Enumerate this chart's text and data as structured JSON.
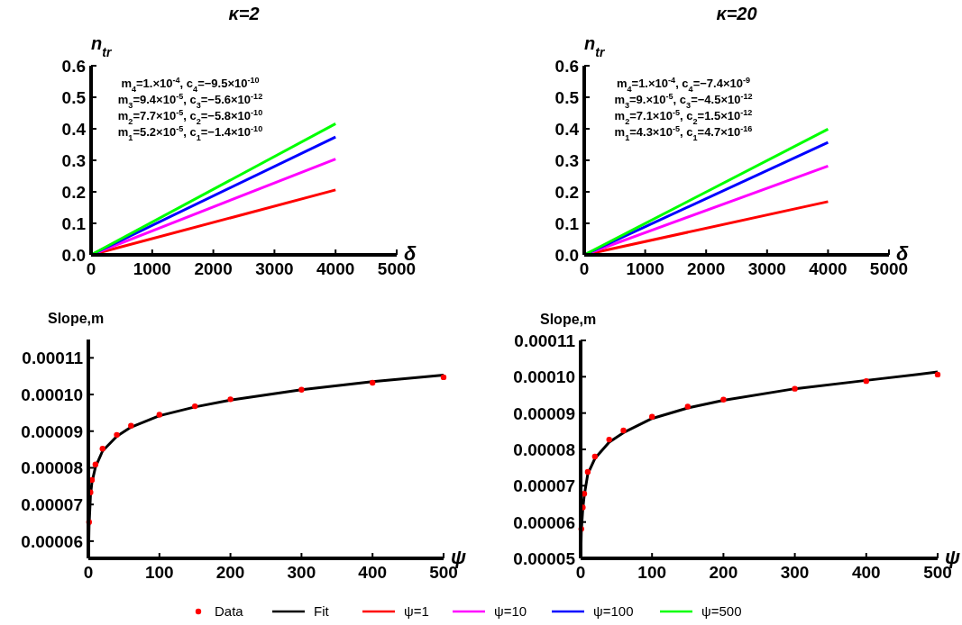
{
  "chart_data": [
    {
      "type": "line",
      "title": "κ=2",
      "xlabel": "δ",
      "ylabel": "n$_{tr}$",
      "xlim": [
        0,
        5000
      ],
      "xticks": [
        0,
        1000,
        2000,
        3000,
        4000,
        5000
      ],
      "ylim": [
        0,
        0.6
      ],
      "yticks": [
        {
          "value": 0,
          "label": "0.0"
        },
        {
          "value": 0.1,
          "label": "0.1"
        },
        {
          "value": 0.2,
          "label": "0.2"
        },
        {
          "value": 0.3,
          "label": "0.3"
        },
        {
          "value": 0.4,
          "label": "0.4"
        },
        {
          "value": 0.5,
          "label": "0.5"
        },
        {
          "value": 0.6,
          "label": "0.6"
        }
      ],
      "grid": false,
      "legend": "bottom",
      "annotations": [
        "m$_{4}$=1.×10$^{-4}$, c$_{4}$=−9.5×10$^{-10}$",
        "m$_{3}$=9.4×10$^{-5}$, c$_{3}$=−5.6×10$^{-12}$",
        "m$_{2}$=7.7×10$^{-5}$, c$_{2}$=−5.8×10$^{-10}$",
        "m$_{1}$=5.2×10$^{-5}$, c$_{1}$=−1.4×10$^{-10}$"
      ],
      "series": [
        {
          "name": "ψ=1",
          "color": "#ff0000",
          "x": [
            0,
            4000
          ],
          "values": [
            0,
            0.206
          ]
        },
        {
          "name": "ψ=10",
          "color": "#ff00ff",
          "x": [
            0,
            4000
          ],
          "values": [
            0,
            0.304
          ]
        },
        {
          "name": "ψ=100",
          "color": "#0000ff",
          "x": [
            0,
            4000
          ],
          "values": [
            0,
            0.374
          ]
        },
        {
          "name": "ψ=500",
          "color": "#00ff00",
          "x": [
            0,
            4000
          ],
          "values": [
            0,
            0.416
          ]
        }
      ]
    },
    {
      "type": "line",
      "title": "κ=20",
      "xlabel": "δ",
      "ylabel": "n$_{tr}$",
      "xlim": [
        0,
        5000
      ],
      "xticks": [
        0,
        1000,
        2000,
        3000,
        4000,
        5000
      ],
      "ylim": [
        0,
        0.6
      ],
      "yticks": [
        {
          "value": 0,
          "label": "0.0"
        },
        {
          "value": 0.1,
          "label": "0.1"
        },
        {
          "value": 0.2,
          "label": "0.2"
        },
        {
          "value": 0.3,
          "label": "0.3"
        },
        {
          "value": 0.4,
          "label": "0.4"
        },
        {
          "value": 0.5,
          "label": "0.5"
        },
        {
          "value": 0.6,
          "label": "0.6"
        }
      ],
      "grid": false,
      "annotations": [
        "m$_{4}$=1.×10$^{-4}$, c$_{4}$=−7.4×10$^{-9}$",
        "m$_{3}$=9.×10$^{-5}$, c$_{3}$=−4.5×10$^{-12}$",
        "m$_{2}$=7.1×10$^{-5}$, c$_{2}$=1.5×10$^{-12}$",
        "m$_{1}$=4.3×10$^{-5}$, c$_{1}$=4.7×10$^{-16}$"
      ],
      "series": [
        {
          "color": "#ff0000",
          "x": [
            0,
            4000
          ],
          "values": [
            0,
            0.169
          ]
        },
        {
          "color": "#ff00ff",
          "x": [
            0,
            4000
          ],
          "values": [
            0,
            0.282
          ]
        },
        {
          "color": "#0000ff",
          "x": [
            0,
            4000
          ],
          "values": [
            0,
            0.357
          ]
        },
        {
          "color": "#00ff00",
          "x": [
            0,
            4000
          ],
          "values": [
            0,
            0.399
          ]
        }
      ]
    },
    {
      "type": "line",
      "xlabel": "ψ",
      "ylabel": "Slope,m",
      "xlim": [
        0,
        500
      ],
      "xticks": [
        0,
        100,
        200,
        300,
        400,
        500
      ],
      "ylim": [
        5.53e-05,
        0.000115
      ],
      "yticks": [
        {
          "value": 6e-05,
          "label": "0.00006"
        },
        {
          "value": 7e-05,
          "label": "0.00007"
        },
        {
          "value": 8e-05,
          "label": "0.00008"
        },
        {
          "value": 9e-05,
          "label": "0.00009"
        },
        {
          "value": 0.0001,
          "label": "0.00010"
        },
        {
          "value": 0.00011,
          "label": "0.00011"
        }
      ],
      "grid": false,
      "legend": "bottom",
      "series": [
        {
          "name": "Data",
          "type": "scatter",
          "marker": "circle",
          "color": "#ff0000",
          "x": [
            1,
            3,
            5,
            10,
            20,
            40,
            60,
            100,
            150,
            200,
            300,
            400,
            500
          ],
          "values": [
            6.52e-05,
            7.33e-05,
            7.67e-05,
            8.09e-05,
            8.52e-05,
            8.9e-05,
            9.15e-05,
            9.45e-05,
            9.68e-05,
            9.87e-05,
            0.0001013,
            0.0001032,
            0.0001047
          ]
        },
        {
          "name": "Fit",
          "color": "#000000",
          "x": [
            0.2,
            1,
            3,
            5,
            10,
            20,
            40,
            60,
            100,
            150,
            200,
            300,
            400,
            500
          ],
          "values": [
            5.55e-05,
            6.4e-05,
            7.25e-05,
            7.6e-05,
            8.02e-05,
            8.46e-05,
            8.86e-05,
            9.11e-05,
            9.42e-05,
            9.66e-05,
            9.85e-05,
            0.0001013,
            0.0001035,
            0.0001053
          ]
        }
      ]
    },
    {
      "type": "line",
      "xlabel": "ψ",
      "ylabel": "Slope,m",
      "xlim": [
        0,
        500
      ],
      "xticks": [
        0,
        100,
        200,
        300,
        400,
        500
      ],
      "ylim": [
        5e-05,
        0.00011
      ],
      "yticks": [
        {
          "value": 5e-05,
          "label": "0.00005"
        },
        {
          "value": 6e-05,
          "label": "0.00006"
        },
        {
          "value": 7e-05,
          "label": "0.00007"
        },
        {
          "value": 8e-05,
          "label": "0.00008"
        },
        {
          "value": 9e-05,
          "label": "0.00009"
        },
        {
          "value": 0.0001,
          "label": "0.00010"
        },
        {
          "value": 0.00011,
          "label": "0.00011"
        }
      ],
      "grid": false,
      "series": [
        {
          "type": "scatter",
          "marker": "circle",
          "color": "#ff0000",
          "x": [
            1,
            3,
            5,
            10,
            20,
            40,
            60,
            100,
            150,
            200,
            300,
            400,
            500
          ],
          "values": [
            5.81e-05,
            6.4e-05,
            6.78e-05,
            7.38e-05,
            7.8e-05,
            8.27e-05,
            8.52e-05,
            8.9e-05,
            9.18e-05,
            9.37e-05,
            9.67e-05,
            9.88e-05,
            0.0001006
          ]
        },
        {
          "color": "#000000",
          "x": [
            0.2,
            1,
            3,
            5,
            10,
            20,
            40,
            60,
            100,
            150,
            200,
            300,
            400,
            500
          ],
          "values": [
            5e-05,
            5.75e-05,
            6.35e-05,
            6.72e-05,
            7.32e-05,
            7.75e-05,
            8.2e-05,
            8.46e-05,
            8.85e-05,
            9.14e-05,
            9.35e-05,
            9.67e-05,
            9.9e-05,
            0.0001013
          ]
        }
      ]
    }
  ]
}
